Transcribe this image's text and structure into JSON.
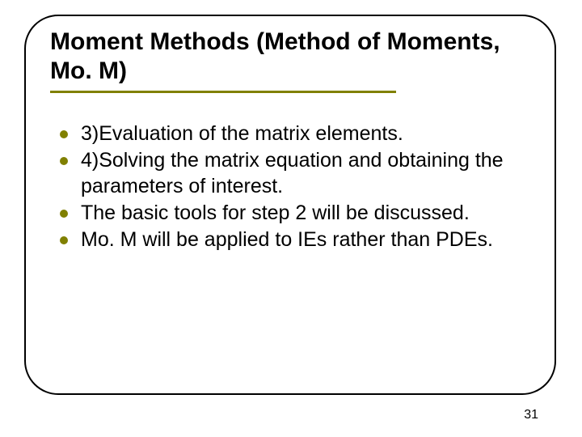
{
  "slide": {
    "background_color": "#ffffff",
    "frame": {
      "border_color": "#000000",
      "border_width": 2,
      "border_radius": 42
    },
    "title": {
      "text": "Moment Methods (Method of Moments, Mo. M)",
      "font_size": 30,
      "font_weight": "bold",
      "color": "#000000",
      "underline_color": "#808000",
      "underline_width": 428,
      "underline_height": 3
    },
    "bullets": {
      "dot_color": "#808000",
      "dot_size": 10,
      "text_color": "#000000",
      "font_size": 25,
      "items": [
        "3)Evaluation of the matrix elements.",
        "4)Solving the matrix equation and obtaining the parameters of interest.",
        "The basic tools for step 2 will be discussed.",
        " Mo. M will be applied to IEs rather than PDEs."
      ]
    },
    "page_number": {
      "value": "31",
      "font_size": 16,
      "color": "#000000"
    }
  }
}
